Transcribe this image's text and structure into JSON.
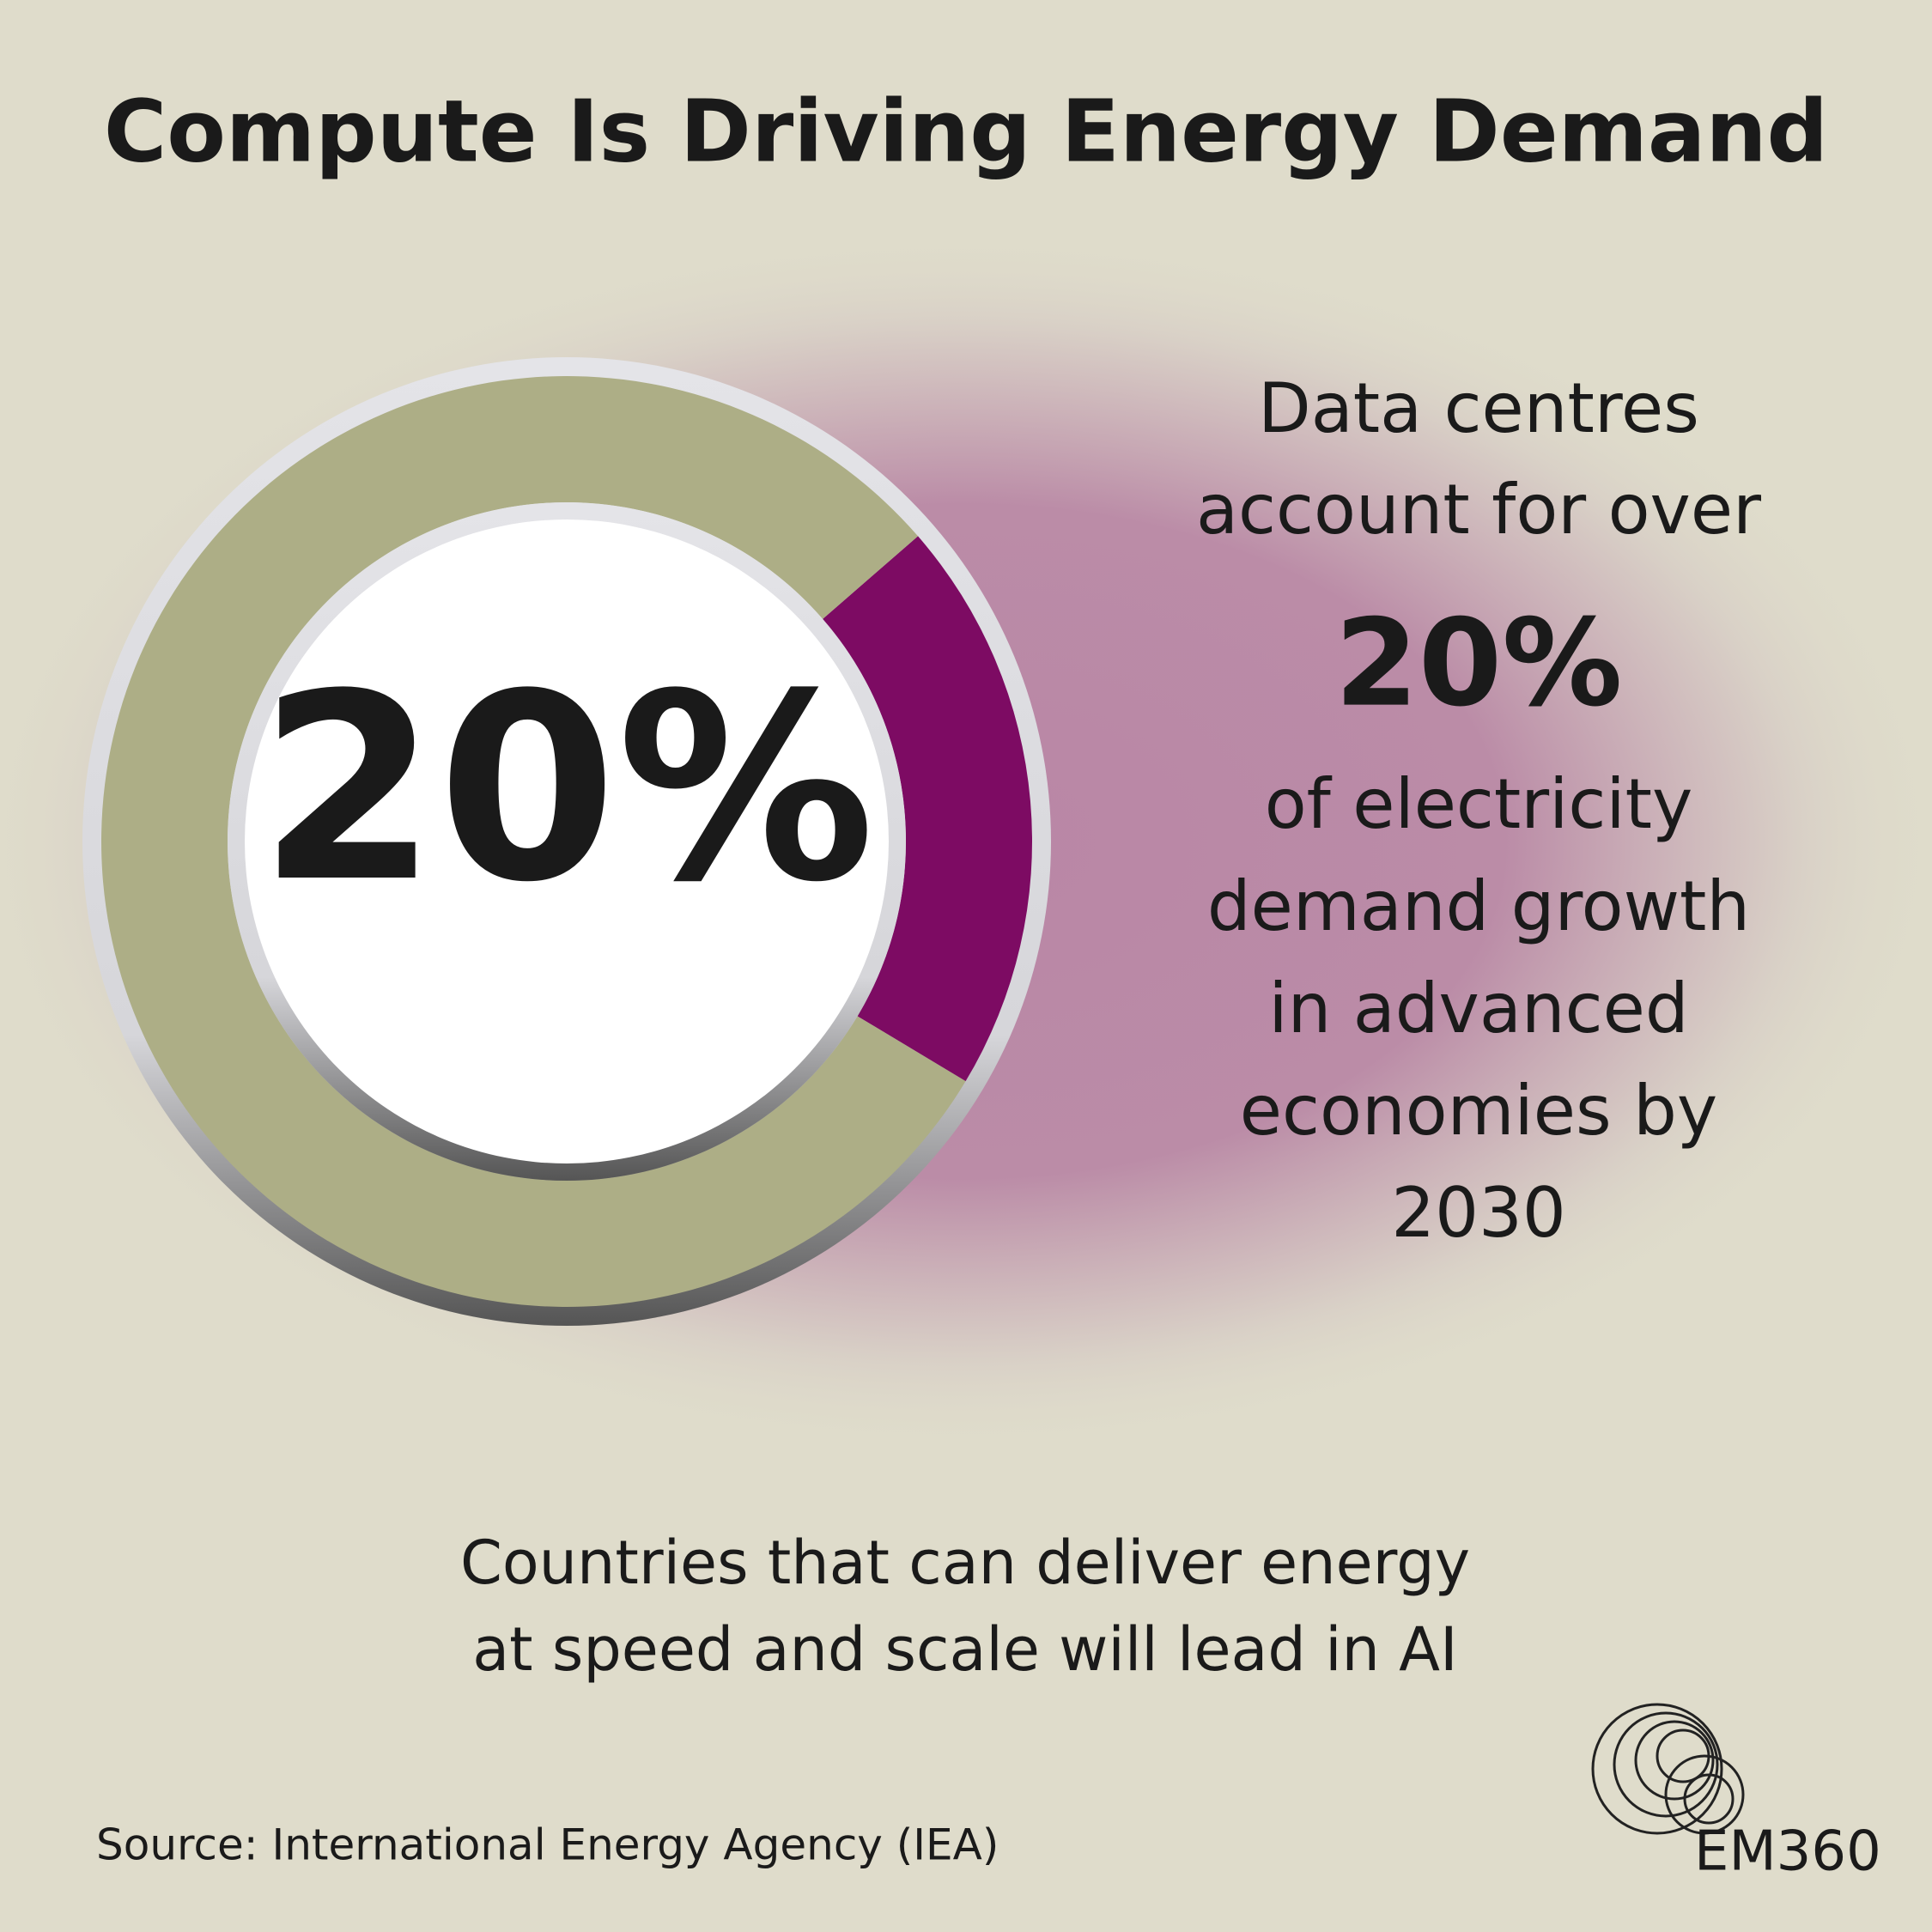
{
  "chart_data": {
    "type": "donut",
    "title": "Compute Is Driving Energy Demand",
    "values": [
      20,
      80
    ],
    "value_labels": [
      "20%",
      null
    ],
    "colors": [
      "#7d0b63",
      "#adae86"
    ]
  },
  "callout": {
    "before_lines": [
      "Data centres",
      "account for over"
    ],
    "after_lines": [
      "of electricity",
      "demand growth",
      "in advanced",
      "economies by",
      "2030"
    ]
  },
  "statement_lines": [
    "Countries that can deliver energy",
    "at speed and scale will lead in AI"
  ],
  "source": "Source: International Energy Agency (IEA)",
  "logo": "EM360"
}
